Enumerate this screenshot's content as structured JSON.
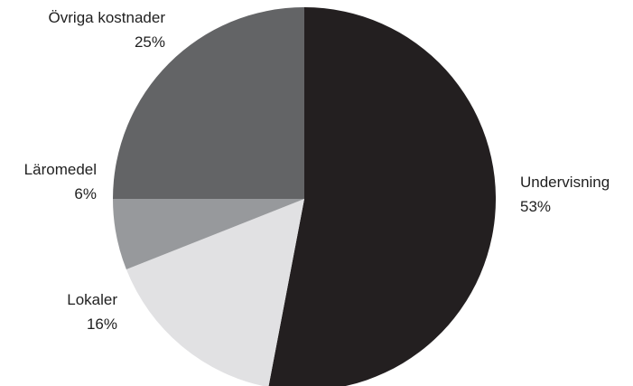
{
  "chart_data": {
    "type": "pie",
    "title": "",
    "start": "top",
    "direction": "clockwise",
    "slices": [
      {
        "label": "Undervisning",
        "pct_label": "53%",
        "value": 53,
        "color": "#231f20"
      },
      {
        "label": "Lokaler",
        "pct_label": "16%",
        "value": 16,
        "color": "#e1e1e3"
      },
      {
        "label": "Läromedel",
        "pct_label": "6%",
        "value": 6,
        "color": "#97999c"
      },
      {
        "label": "Övriga kostnader",
        "pct_label": "25%",
        "value": 25,
        "color": "#636466"
      }
    ]
  }
}
